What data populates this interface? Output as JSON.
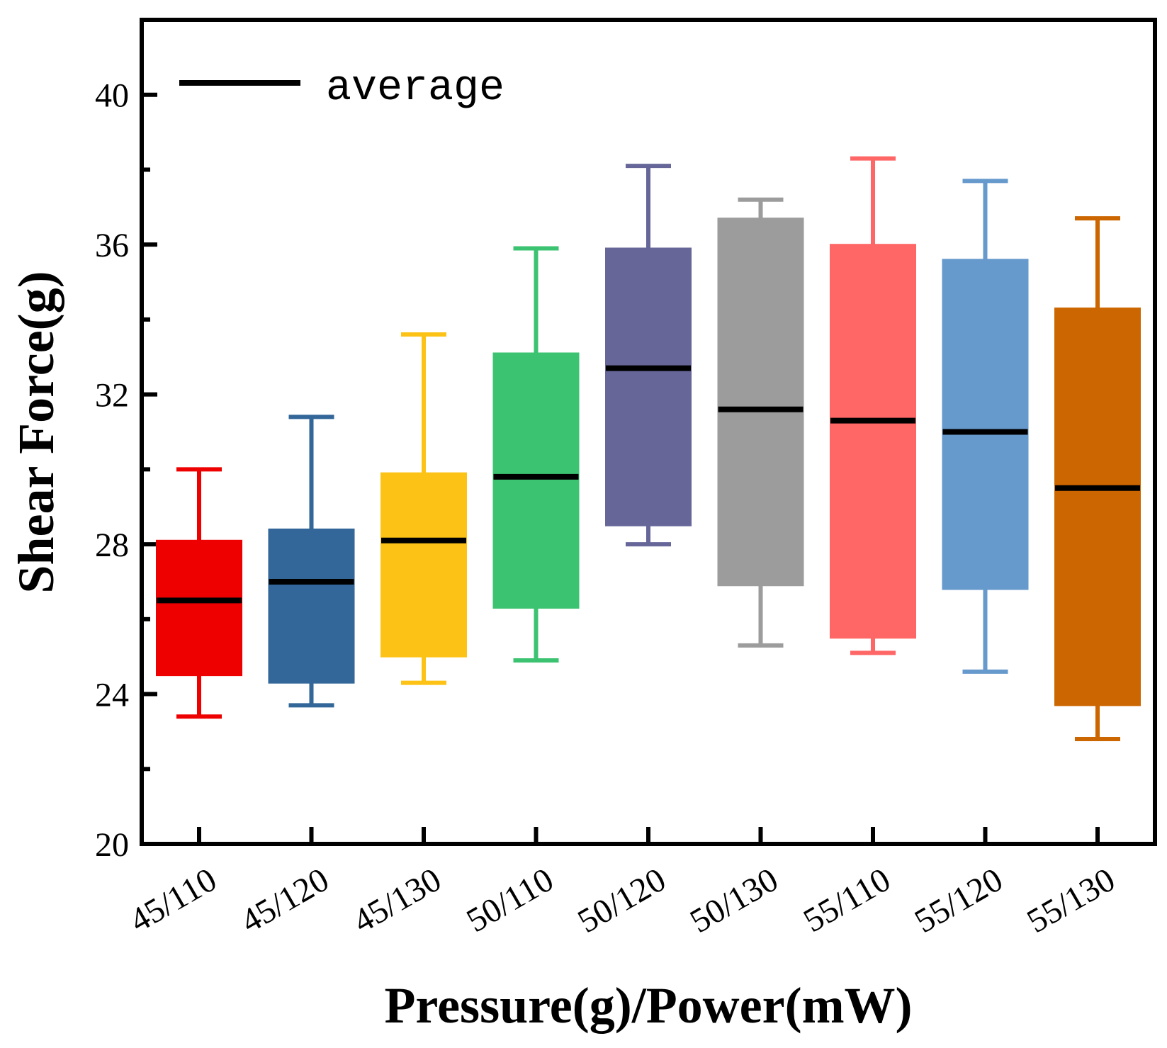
{
  "chart_data": {
    "type": "box",
    "title": "",
    "xlabel": "Pressure(g)/Power(mW)",
    "ylabel": "Shear Force(g)",
    "ylim": [
      20,
      42
    ],
    "yticks": [
      20,
      24,
      28,
      32,
      36,
      40
    ],
    "ytick_labels": [
      "20",
      "24",
      "28",
      "32",
      "36",
      "40"
    ],
    "legend": {
      "label": "average",
      "position": "top-left"
    },
    "categories": [
      "45/110",
      "45/120",
      "45/130",
      "50/110",
      "50/120",
      "50/130",
      "55/110",
      "55/120",
      "55/130"
    ],
    "boxes": [
      {
        "label": "45/110",
        "min": 23.4,
        "q1": 24.5,
        "mean": 26.5,
        "q3": 28.1,
        "max": 30.0,
        "color": "#ee0000"
      },
      {
        "label": "45/120",
        "min": 23.7,
        "q1": 24.3,
        "mean": 27.0,
        "q3": 28.4,
        "max": 31.4,
        "color": "#336699"
      },
      {
        "label": "45/130",
        "min": 24.3,
        "q1": 25.0,
        "mean": 28.1,
        "q3": 29.9,
        "max": 33.6,
        "color": "#fcc216"
      },
      {
        "label": "50/110",
        "min": 24.9,
        "q1": 26.3,
        "mean": 29.8,
        "q3": 33.1,
        "max": 35.9,
        "color": "#3cc371"
      },
      {
        "label": "50/120",
        "min": 28.0,
        "q1": 28.5,
        "mean": 32.7,
        "q3": 35.9,
        "max": 38.1,
        "color": "#666699"
      },
      {
        "label": "50/130",
        "min": 25.3,
        "q1": 26.9,
        "mean": 31.6,
        "q3": 36.7,
        "max": 37.2,
        "color": "#9c9c9c"
      },
      {
        "label": "55/110",
        "min": 25.1,
        "q1": 25.5,
        "mean": 31.3,
        "q3": 36.0,
        "max": 38.3,
        "color": "#ff6666"
      },
      {
        "label": "55/120",
        "min": 24.6,
        "q1": 26.8,
        "mean": 31.0,
        "q3": 35.6,
        "max": 37.7,
        "color": "#6699cc"
      },
      {
        "label": "55/130",
        "min": 22.8,
        "q1": 23.7,
        "mean": 29.5,
        "q3": 34.3,
        "max": 36.7,
        "color": "#cc6600"
      }
    ]
  }
}
